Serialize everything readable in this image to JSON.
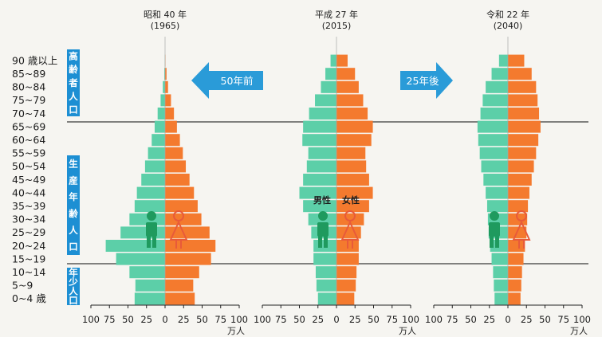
{
  "colors": {
    "male": "#5ccfa8",
    "female": "#f47a2e",
    "group_box": "#1d8fd3",
    "arrow": "#2a9bd8",
    "male_icon": "#1f9a5e",
    "female_icon": "#e85a3a",
    "divider": "#3a3a3a"
  },
  "icons": [
    "male-icon",
    "female-icon",
    "left-arrow-icon",
    "right-arrow-icon"
  ],
  "arrows": {
    "left": "50年前",
    "right": "25年後"
  },
  "groups": {
    "elderly": "高齢者人口",
    "working": "生産年齢人口",
    "young": "年少人口"
  },
  "sex_labels": {
    "male": "男性",
    "female": "女性"
  },
  "chart_data": [
    {
      "type": "bar",
      "orientation": "horizontal-population-pyramid",
      "title": "昭和 40 年",
      "subtitle": "(1965)",
      "categories": [
        "0~4 歳",
        "5~9",
        "10~14",
        "15~19",
        "20~24",
        "25~29",
        "30~34",
        "35~39",
        "40~44",
        "45~49",
        "50~54",
        "55~59",
        "60~64",
        "65~69",
        "70~74",
        "75~79",
        "80~84",
        "85~89",
        "90 歳以上"
      ],
      "series": [
        {
          "name": "男性",
          "values": [
            41,
            40,
            48,
            66,
            80,
            60,
            48,
            41,
            38,
            32,
            27,
            23,
            18,
            14,
            10,
            6,
            3,
            1,
            0.3
          ]
        },
        {
          "name": "女性",
          "values": [
            40,
            38,
            46,
            62,
            68,
            60,
            49,
            44,
            39,
            33,
            28,
            24,
            20,
            16,
            12,
            8,
            4,
            2,
            0.5
          ]
        }
      ],
      "xlabel": "万人",
      "xticks": [
        "100",
        "75",
        "50",
        "25",
        "0",
        "25",
        "50",
        "75",
        "100"
      ],
      "xlim": [
        -100,
        100
      ]
    },
    {
      "type": "bar",
      "orientation": "horizontal-population-pyramid",
      "title": "平成 27 年",
      "subtitle": "(2015)",
      "categories": [
        "0~4 歳",
        "5~9",
        "10~14",
        "15~19",
        "20~24",
        "25~29",
        "30~34",
        "35~39",
        "40~44",
        "45~49",
        "50~54",
        "55~59",
        "60~64",
        "65~69",
        "70~74",
        "75~79",
        "80~84",
        "85~89",
        "90 歳以上"
      ],
      "series": [
        {
          "name": "男性",
          "values": [
            25,
            27,
            28,
            31,
            31,
            34,
            38,
            45,
            50,
            45,
            40,
            38,
            46,
            45,
            37,
            29,
            21,
            15,
            8
          ]
        },
        {
          "name": "女性",
          "values": [
            24,
            26,
            27,
            30,
            30,
            33,
            37,
            44,
            49,
            44,
            40,
            39,
            47,
            49,
            42,
            36,
            30,
            25,
            15
          ]
        }
      ],
      "xlabel": "万人",
      "xticks": [
        "100",
        "75",
        "50",
        "25",
        "0",
        "25",
        "50",
        "75",
        "100"
      ],
      "xlim": [
        -100,
        100
      ]
    },
    {
      "type": "bar",
      "orientation": "horizontal-population-pyramid",
      "title": "令和 22 年",
      "subtitle": "(2040)",
      "categories": [
        "0~4 歳",
        "5~9",
        "10~14",
        "15~19",
        "20~24",
        "25~29",
        "30~34",
        "35~39",
        "40~44",
        "45~49",
        "50~54",
        "55~59",
        "60~64",
        "65~69",
        "70~74",
        "75~79",
        "80~84",
        "85~89",
        "90 歳以上"
      ],
      "series": [
        {
          "name": "男性",
          "values": [
            18,
            19,
            20,
            22,
            24,
            26,
            27,
            28,
            30,
            33,
            36,
            38,
            40,
            41,
            37,
            34,
            30,
            22,
            12
          ]
        },
        {
          "name": "女性",
          "values": [
            17,
            18,
            19,
            21,
            23,
            25,
            26,
            27,
            29,
            32,
            35,
            38,
            41,
            44,
            42,
            40,
            38,
            32,
            22
          ]
        }
      ],
      "xlabel": "万人",
      "xticks": [
        "100",
        "75",
        "50",
        "25",
        "0",
        "25",
        "50",
        "75",
        "100"
      ],
      "xlim": [
        -100,
        100
      ]
    }
  ]
}
